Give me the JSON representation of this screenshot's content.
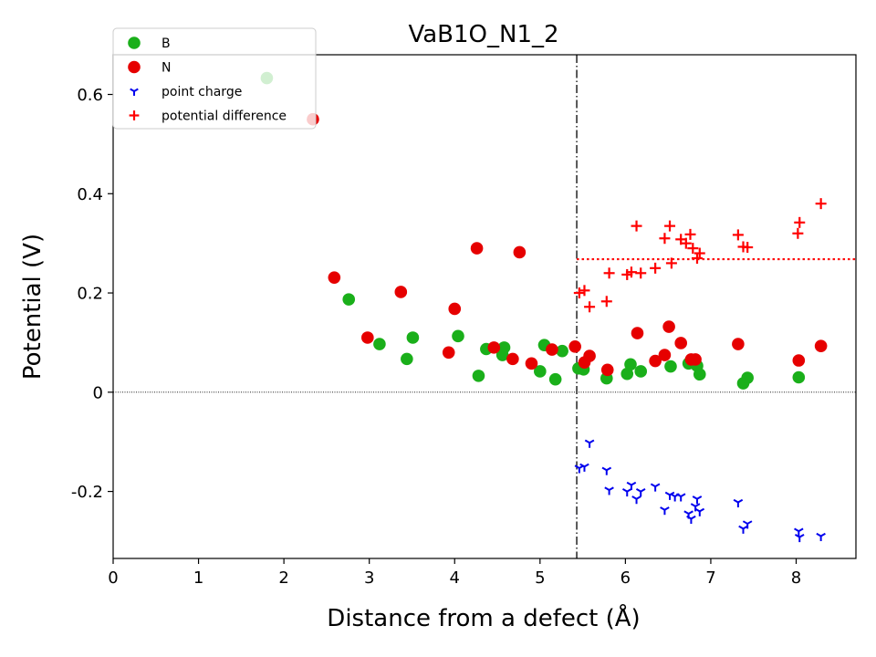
{
  "chart_data": {
    "type": "scatter",
    "title": "VaB1O_N1_2",
    "xlabel": "Distance from a defect (Å)",
    "ylabel": "Potential (V)",
    "xlim": [
      0,
      8.7
    ],
    "ylim": [
      -0.335,
      0.68
    ],
    "xticks": [
      0,
      1,
      2,
      3,
      4,
      5,
      6,
      7,
      8
    ],
    "xtick_labels": [
      "0",
      "1",
      "2",
      "3",
      "4",
      "5",
      "6",
      "7",
      "8"
    ],
    "yticks": [
      -0.2,
      0,
      0.2,
      0.4,
      0.6
    ],
    "ytick_labels": [
      "-0.2",
      "0",
      "0.2",
      "0.4",
      "0.6"
    ],
    "legend_position": "top-left",
    "vertical_line_x": 5.43,
    "zero_line_y": 0,
    "average_potential_difference": {
      "x_start": 5.43,
      "x_end": 8.7,
      "y": 0.268
    },
    "series": [
      {
        "name": "B",
        "marker": "circle",
        "color": "#1aaf1a",
        "points": [
          [
            1.8,
            0.633
          ],
          [
            2.76,
            0.187
          ],
          [
            3.12,
            0.097
          ],
          [
            3.44,
            0.067
          ],
          [
            3.51,
            0.11
          ],
          [
            4.04,
            0.113
          ],
          [
            4.28,
            0.033
          ],
          [
            4.37,
            0.087
          ],
          [
            4.56,
            0.075
          ],
          [
            4.58,
            0.09
          ],
          [
            5.0,
            0.042
          ],
          [
            5.05,
            0.095
          ],
          [
            5.18,
            0.026
          ],
          [
            5.26,
            0.083
          ],
          [
            5.45,
            0.048
          ],
          [
            5.51,
            0.046
          ],
          [
            5.78,
            0.028
          ],
          [
            6.02,
            0.037
          ],
          [
            6.06,
            0.056
          ],
          [
            6.18,
            0.042
          ],
          [
            6.53,
            0.052
          ],
          [
            6.74,
            0.058
          ],
          [
            6.84,
            0.053
          ],
          [
            6.87,
            0.036
          ],
          [
            7.38,
            0.018
          ],
          [
            7.43,
            0.029
          ],
          [
            8.03,
            0.03
          ]
        ]
      },
      {
        "name": "N",
        "marker": "circle",
        "color": "#e60000",
        "points": [
          [
            2.34,
            0.55
          ],
          [
            2.59,
            0.231
          ],
          [
            2.98,
            0.11
          ],
          [
            3.37,
            0.202
          ],
          [
            3.93,
            0.08
          ],
          [
            4.0,
            0.168
          ],
          [
            4.26,
            0.29
          ],
          [
            4.46,
            0.09
          ],
          [
            4.68,
            0.067
          ],
          [
            4.76,
            0.282
          ],
          [
            4.9,
            0.058
          ],
          [
            5.14,
            0.086
          ],
          [
            5.41,
            0.092
          ],
          [
            5.52,
            0.06
          ],
          [
            5.58,
            0.073
          ],
          [
            5.79,
            0.045
          ],
          [
            6.14,
            0.119
          ],
          [
            6.35,
            0.063
          ],
          [
            6.46,
            0.075
          ],
          [
            6.51,
            0.132
          ],
          [
            6.65,
            0.099
          ],
          [
            6.77,
            0.066
          ],
          [
            6.82,
            0.066
          ],
          [
            7.32,
            0.097
          ],
          [
            8.03,
            0.064
          ],
          [
            8.29,
            0.093
          ]
        ]
      },
      {
        "name": "point charge",
        "marker": "tri_down",
        "color": "#0000ee",
        "points": [
          [
            5.46,
            -0.153
          ],
          [
            5.52,
            -0.15
          ],
          [
            5.58,
            -0.102
          ],
          [
            5.78,
            -0.157
          ],
          [
            5.81,
            -0.197
          ],
          [
            6.02,
            -0.2
          ],
          [
            6.07,
            -0.187
          ],
          [
            6.13,
            -0.215
          ],
          [
            6.18,
            -0.2
          ],
          [
            6.35,
            -0.19
          ],
          [
            6.46,
            -0.237
          ],
          [
            6.52,
            -0.207
          ],
          [
            6.58,
            -0.21
          ],
          [
            6.65,
            -0.21
          ],
          [
            6.74,
            -0.245
          ],
          [
            6.77,
            -0.255
          ],
          [
            6.82,
            -0.23
          ],
          [
            6.84,
            -0.215
          ],
          [
            6.87,
            -0.24
          ],
          [
            7.32,
            -0.222
          ],
          [
            7.38,
            -0.275
          ],
          [
            7.43,
            -0.265
          ],
          [
            8.03,
            -0.28
          ],
          [
            8.04,
            -0.292
          ],
          [
            8.29,
            -0.29
          ]
        ]
      },
      {
        "name": "potential difference",
        "marker": "plus",
        "color": "#ff0000",
        "points": [
          [
            5.46,
            0.2
          ],
          [
            5.52,
            0.205
          ],
          [
            5.58,
            0.172
          ],
          [
            5.78,
            0.183
          ],
          [
            5.81,
            0.24
          ],
          [
            6.02,
            0.237
          ],
          [
            6.07,
            0.242
          ],
          [
            6.13,
            0.335
          ],
          [
            6.18,
            0.24
          ],
          [
            6.35,
            0.25
          ],
          [
            6.46,
            0.31
          ],
          [
            6.52,
            0.335
          ],
          [
            6.54,
            0.26
          ],
          [
            6.65,
            0.308
          ],
          [
            6.71,
            0.3
          ],
          [
            6.76,
            0.318
          ],
          [
            6.79,
            0.29
          ],
          [
            6.84,
            0.27
          ],
          [
            6.87,
            0.28
          ],
          [
            7.32,
            0.317
          ],
          [
            7.38,
            0.293
          ],
          [
            7.43,
            0.292
          ],
          [
            8.02,
            0.32
          ],
          [
            8.04,
            0.342
          ],
          [
            8.29,
            0.38
          ]
        ]
      }
    ]
  }
}
